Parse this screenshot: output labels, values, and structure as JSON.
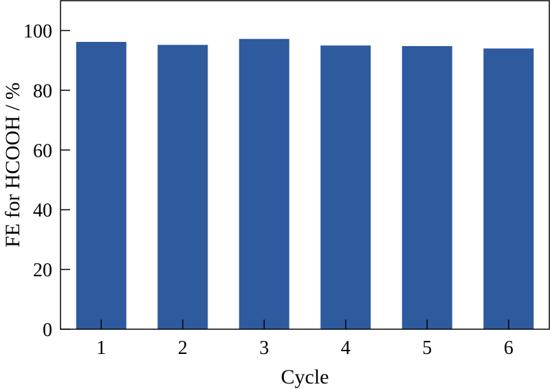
{
  "chart_data": {
    "type": "bar",
    "title": "",
    "xlabel": "Cycle",
    "ylabel": "FE for HCOOH / %",
    "categories": [
      "1",
      "2",
      "3",
      "4",
      "5",
      "6"
    ],
    "values": [
      96.2,
      95.2,
      97.2,
      95.0,
      94.8,
      94.0
    ],
    "ylim": [
      0,
      110
    ],
    "yticks": [
      0,
      20,
      40,
      60,
      80,
      100
    ],
    "bar_color": "#2e5a9e",
    "grid": false,
    "legend": "none"
  }
}
